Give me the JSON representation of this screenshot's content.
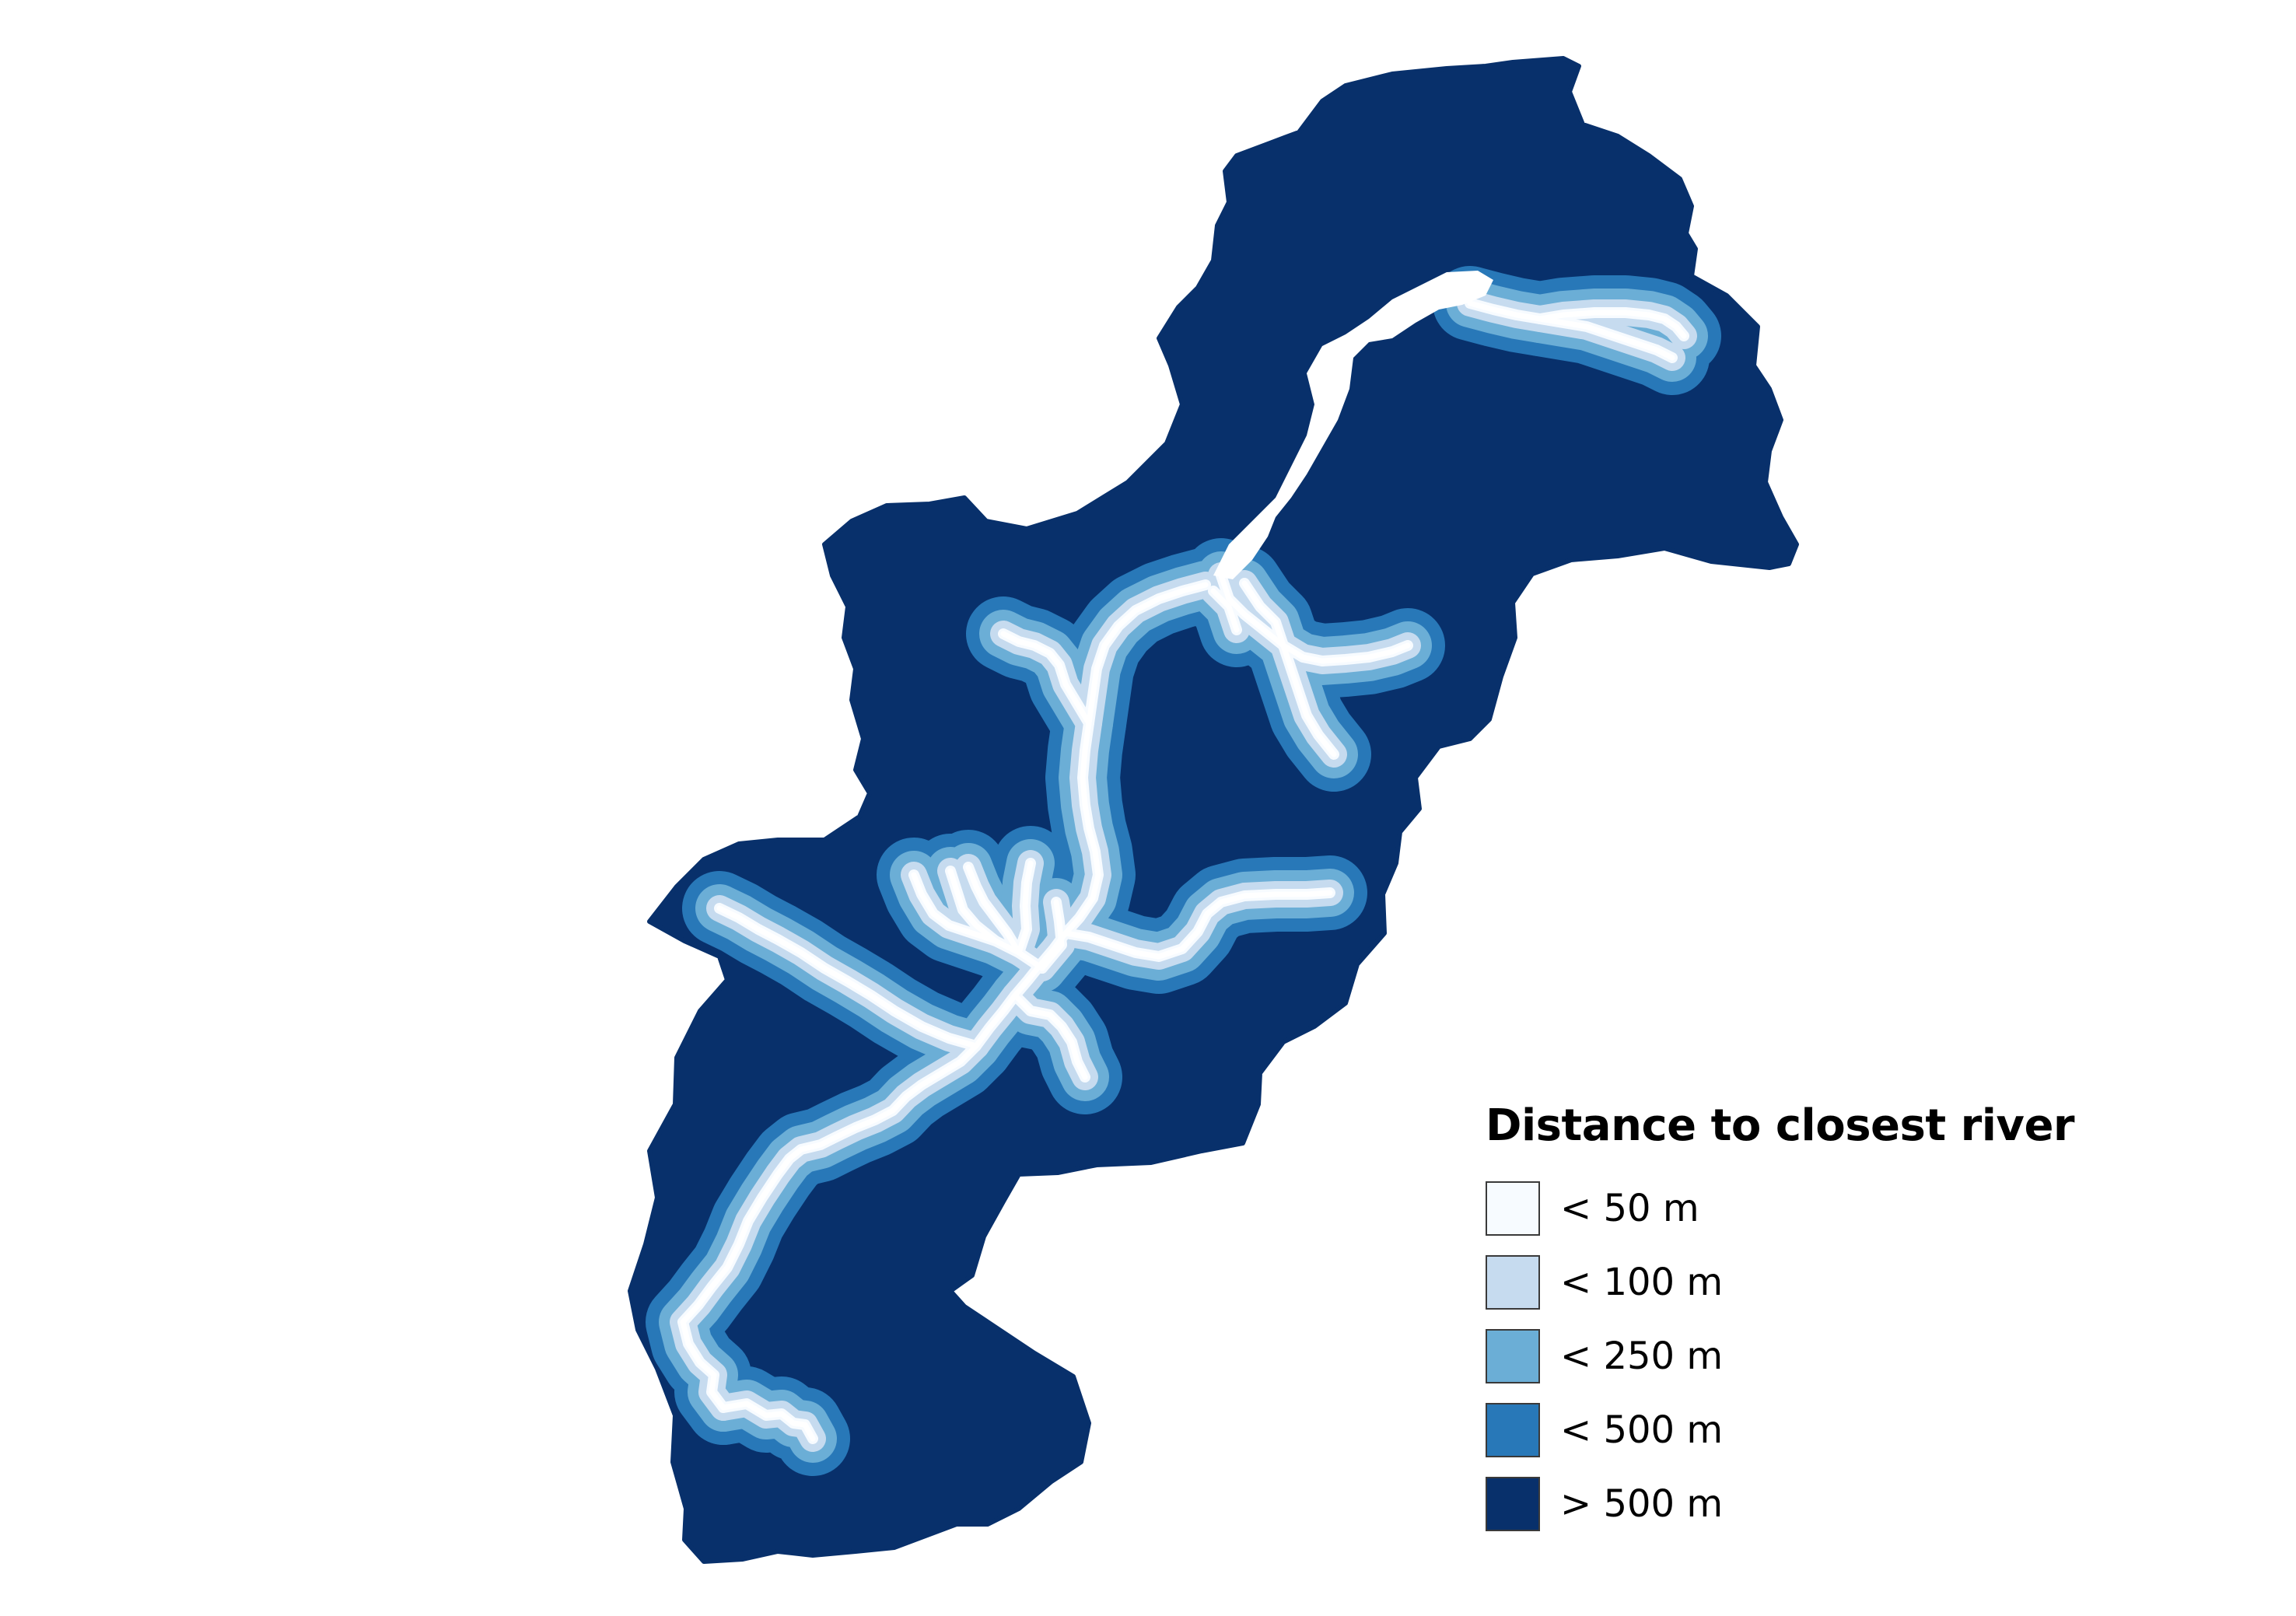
{
  "legend": {
    "title": "Distance to closest river",
    "items": [
      {
        "label": "< 50 m",
        "color": "#f7fbff"
      },
      {
        "label": "< 100 m",
        "color": "#c6dbef"
      },
      {
        "label": "< 250 m",
        "color": "#6baed6"
      },
      {
        "label": "< 500 m",
        "color": "#2878b8"
      },
      {
        "label": "> 500 m",
        "color": "#08306b"
      }
    ]
  }
}
